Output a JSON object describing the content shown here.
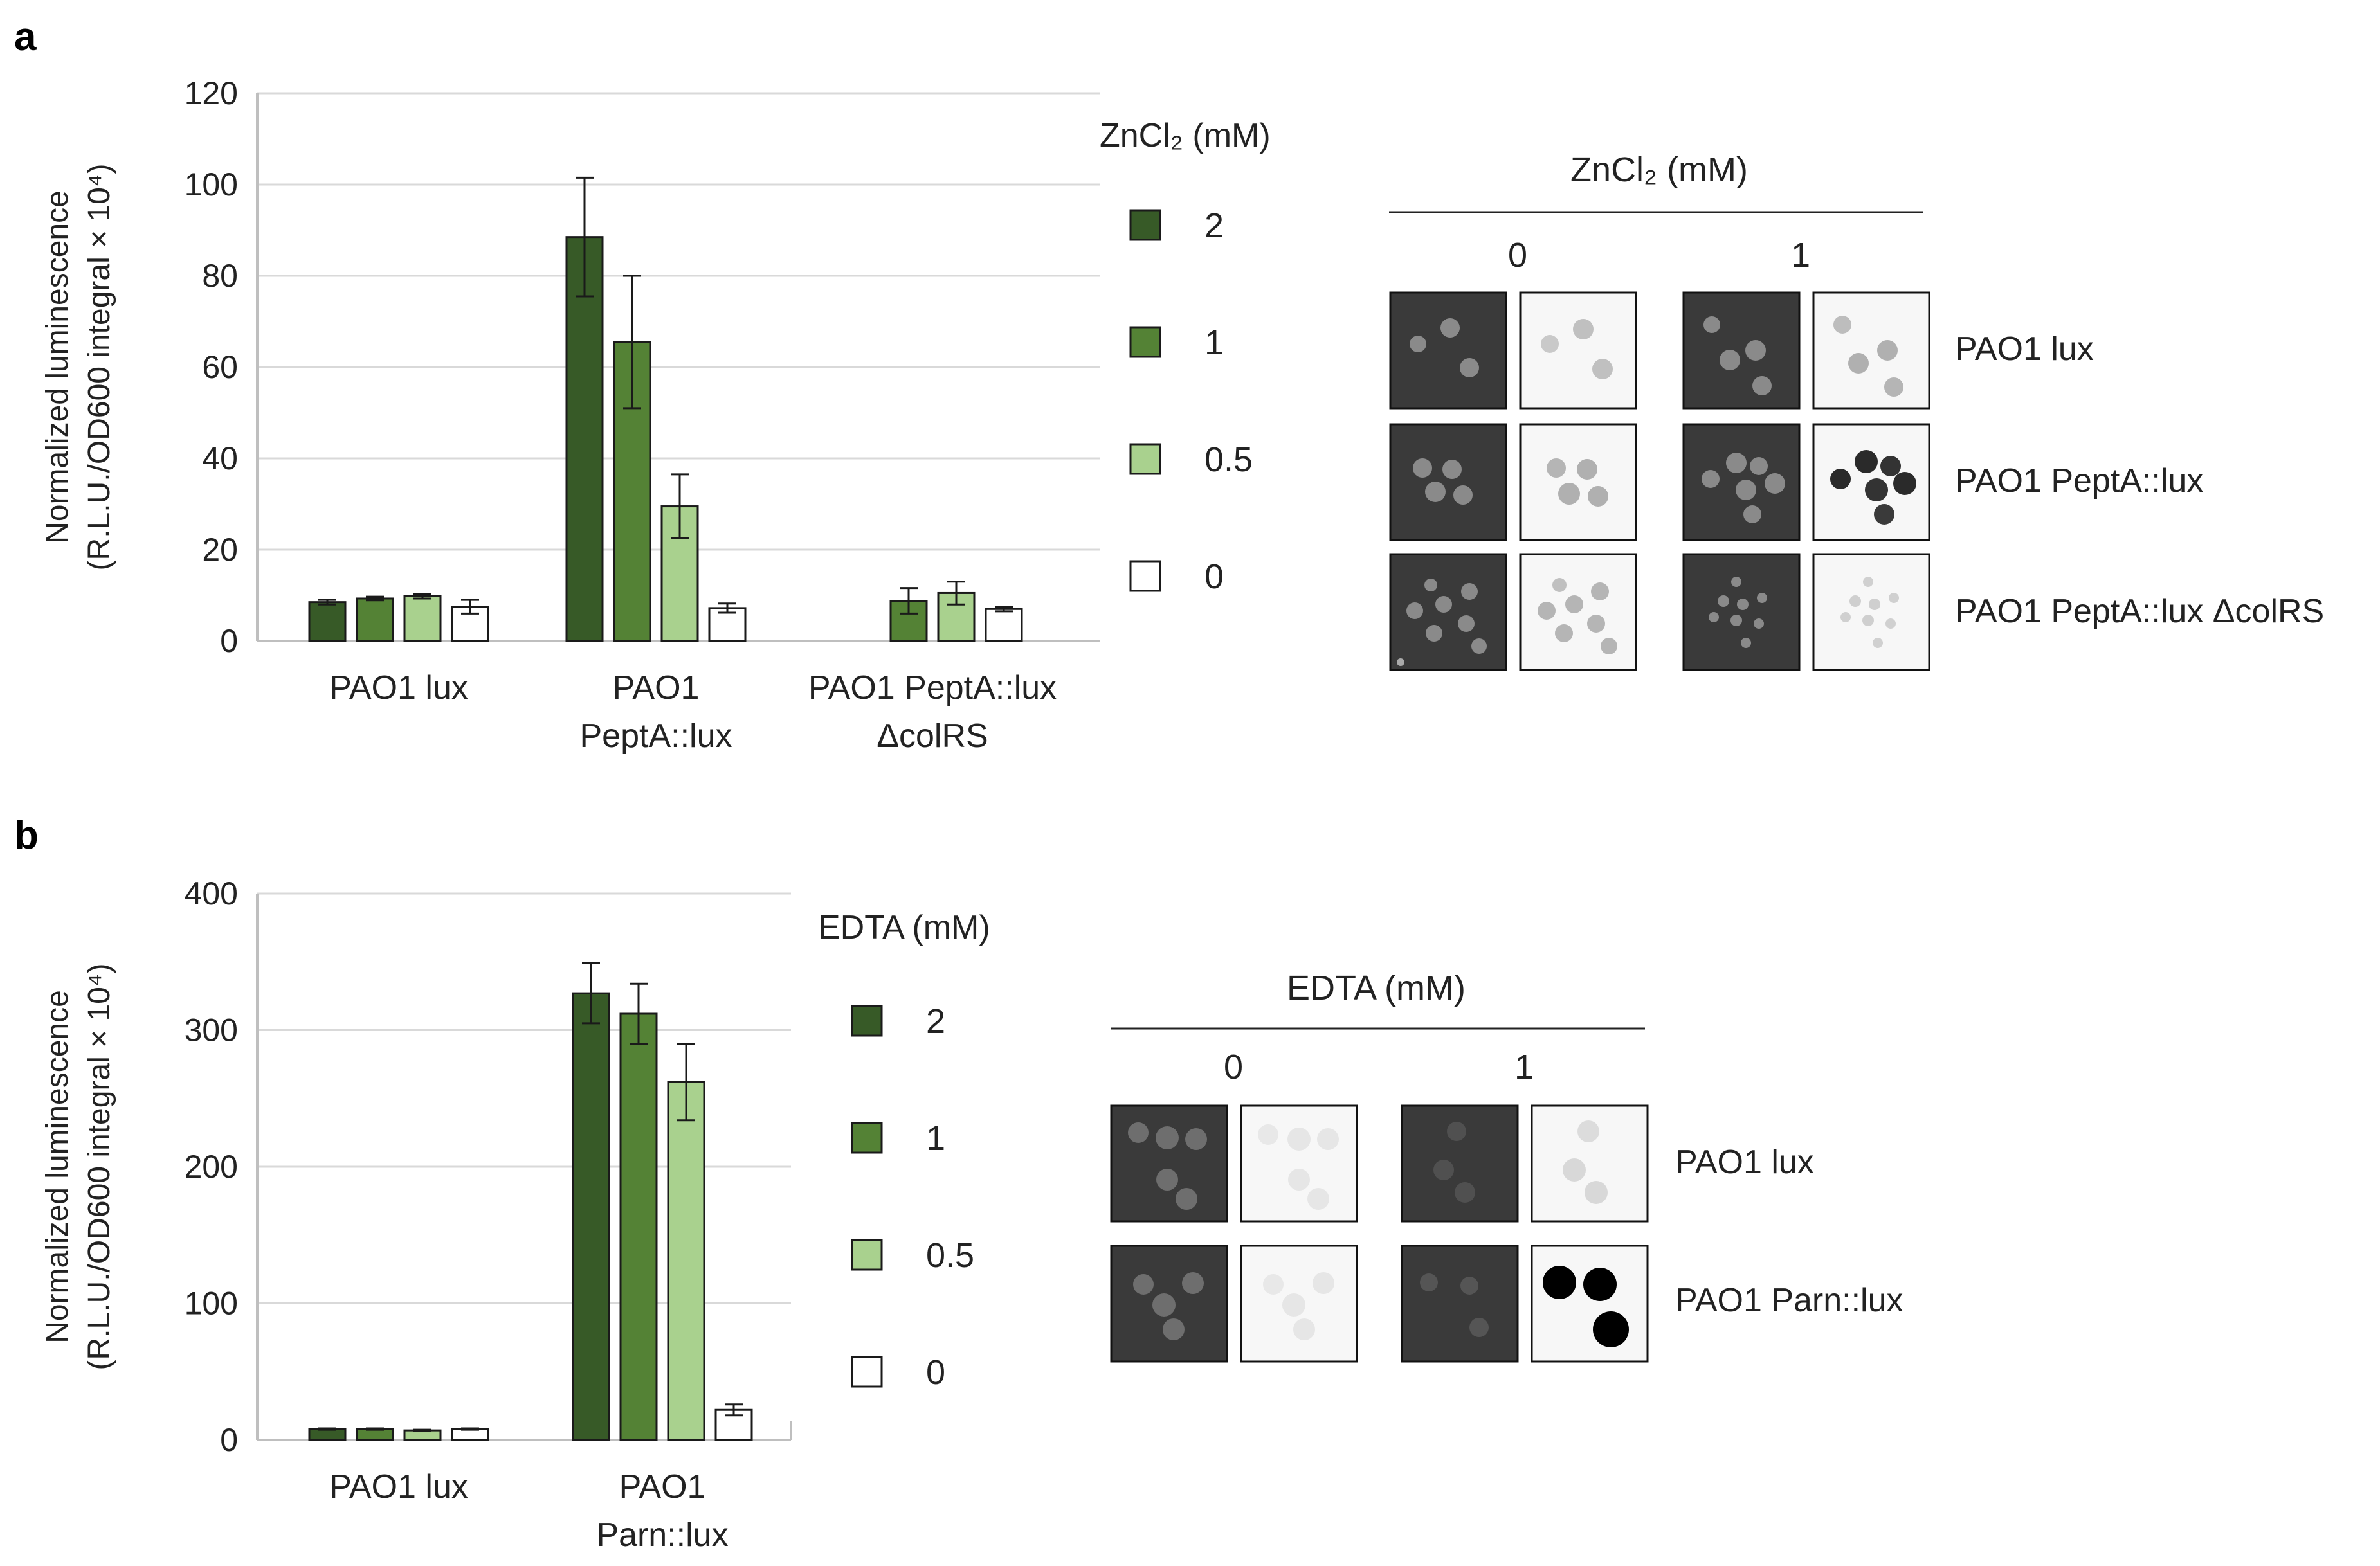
{
  "panel_labels": {
    "a": "a",
    "b": "b"
  },
  "colors": {
    "c2": "#375a27",
    "c1": "#548235",
    "c05": "#a9d18e",
    "c0": "#ffffff",
    "grid": "#d9d9d9"
  },
  "chart_data": [
    {
      "type": "bar",
      "panel": "a",
      "ylabel_line1": "Normalized luminescence",
      "ylabel_line2": "(R.L.U./OD600 integral × 10⁴)",
      "ylim": [
        0,
        120
      ],
      "yticks": [
        "0",
        "20",
        "40",
        "60",
        "80",
        "100",
        "120"
      ],
      "grid": true,
      "legend_title": "ZnCl₂ (mM)",
      "legend_position": "right",
      "categories": [
        {
          "line1": "PAO1 lux",
          "line2": ""
        },
        {
          "line1": "PAO1",
          "line2": "PeptA::lux"
        },
        {
          "line1": "PAO1 PeptA::lux",
          "line2": "ΔcolRS"
        }
      ],
      "series": [
        {
          "name": "2",
          "color": "#375a27",
          "values": [
            8.5,
            88.5,
            null
          ],
          "errors": [
            0.5,
            13,
            null
          ]
        },
        {
          "name": "1",
          "color": "#548235",
          "values": [
            9.3,
            65.5,
            8.8
          ],
          "errors": [
            0.4,
            14.5,
            2.8
          ]
        },
        {
          "name": "0.5",
          "color": "#a9d18e",
          "values": [
            9.8,
            29.5,
            10.5
          ],
          "errors": [
            0.5,
            7,
            2.5
          ]
        },
        {
          "name": "0",
          "color": "#ffffff",
          "values": [
            7.5,
            7.2,
            7.0
          ],
          "errors": [
            1.5,
            1.0,
            0.5
          ]
        }
      ]
    },
    {
      "type": "bar",
      "panel": "b",
      "ylabel_line1": "Normalized luminescence",
      "ylabel_line2": "(R.L.U./OD600 integral × 10⁴)",
      "ylim": [
        0,
        400
      ],
      "yticks": [
        "0",
        "100",
        "200",
        "300",
        "400"
      ],
      "grid": true,
      "legend_title": "EDTA (mM)",
      "legend_position": "right",
      "categories": [
        {
          "line1": "PAO1 lux",
          "line2": ""
        },
        {
          "line1": "PAO1",
          "line2": "Parn::lux"
        }
      ],
      "series": [
        {
          "name": "2",
          "color": "#375a27",
          "values": [
            8,
            327
          ],
          "errors": [
            0.5,
            22
          ]
        },
        {
          "name": "1",
          "color": "#548235",
          "values": [
            8,
            312
          ],
          "errors": [
            0.5,
            22
          ]
        },
        {
          "name": "0.5",
          "color": "#a9d18e",
          "values": [
            7,
            262
          ],
          "errors": [
            0.5,
            28
          ]
        },
        {
          "name": "0",
          "color": "#ffffff",
          "values": [
            8,
            22
          ],
          "errors": [
            0.5,
            4
          ]
        }
      ]
    }
  ],
  "images_a": {
    "header": "ZnCl₂ (mM)",
    "col_labels": [
      "0",
      "1"
    ],
    "row_labels": [
      "PAO1 lux",
      "PAO1 PeptA::lux",
      "PAO1 PeptA::lux ΔcolRS"
    ]
  },
  "images_b": {
    "header": "EDTA (mM)",
    "col_labels": [
      "0",
      "1"
    ],
    "row_labels": [
      "PAO1 lux",
      "PAO1 Parn::lux"
    ]
  }
}
